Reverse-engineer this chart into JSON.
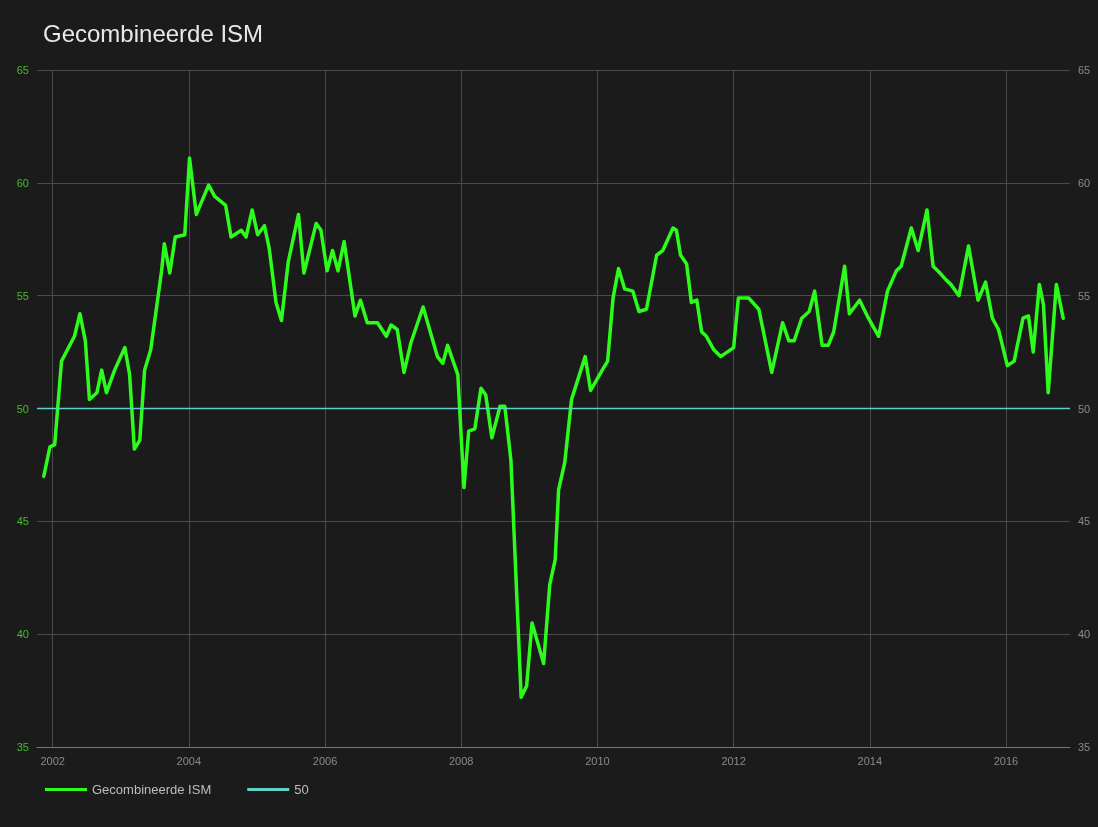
{
  "chart_data": {
    "type": "line",
    "title": "Gecombineerde ISM",
    "x": [
      2001.87,
      2001.96,
      2002.03,
      2002.13,
      2002.32,
      2002.4,
      2002.48,
      2002.54,
      2002.65,
      2002.72,
      2002.79,
      2002.91,
      2003.06,
      2003.13,
      2003.2,
      2003.28,
      2003.35,
      2003.44,
      2003.6,
      2003.64,
      2003.72,
      2003.8,
      2003.94,
      2004.01,
      2004.11,
      2004.29,
      2004.38,
      2004.54,
      2004.62,
      2004.77,
      2004.84,
      2004.93,
      2005.01,
      2005.11,
      2005.18,
      2005.28,
      2005.36,
      2005.46,
      2005.61,
      2005.69,
      2005.87,
      2005.94,
      2006.03,
      2006.11,
      2006.19,
      2006.28,
      2006.44,
      2006.52,
      2006.62,
      2006.77,
      2006.9,
      2006.97,
      2007.06,
      2007.16,
      2007.26,
      2007.44,
      2007.65,
      2007.73,
      2007.8,
      2007.95,
      2008.04,
      2008.11,
      2008.2,
      2008.29,
      2008.36,
      2008.45,
      2008.57,
      2008.64,
      2008.73,
      2008.88,
      2008.96,
      2009.04,
      2009.21,
      2009.3,
      2009.38,
      2009.43,
      2009.52,
      2009.62,
      2009.82,
      2009.9,
      2010.09,
      2010.15,
      2010.23,
      2010.31,
      2010.4,
      2010.52,
      2010.61,
      2010.72,
      2010.87,
      2010.96,
      2011.11,
      2011.16,
      2011.22,
      2011.31,
      2011.38,
      2011.46,
      2011.53,
      2011.6,
      2011.71,
      2011.81,
      2012.0,
      2012.07,
      2012.22,
      2012.37,
      2012.56,
      2012.72,
      2012.81,
      2012.89,
      2013.0,
      2013.11,
      2013.19,
      2013.3,
      2013.39,
      2013.47,
      2013.63,
      2013.7,
      2013.85,
      2013.98,
      2014.13,
      2014.26,
      2014.39,
      2014.46,
      2014.61,
      2014.71,
      2014.84,
      2014.93,
      2015.03,
      2015.12,
      2015.19,
      2015.31,
      2015.45,
      2015.59,
      2015.7,
      2015.8,
      2015.89,
      2016.02,
      2016.12,
      2016.25,
      2016.33,
      2016.4,
      2016.49,
      2016.55,
      2016.62,
      2016.74,
      2016.84
    ],
    "series": [
      {
        "name": "Gecombineerde ISM",
        "color": "#2dfb1c",
        "values": [
          47.0,
          48.3,
          48.4,
          52.1,
          53.2,
          54.2,
          53.0,
          50.4,
          50.7,
          51.7,
          50.7,
          51.7,
          52.7,
          51.5,
          48.2,
          48.6,
          51.7,
          52.6,
          56.1,
          57.3,
          56.0,
          57.6,
          57.7,
          61.1,
          58.6,
          59.9,
          59.4,
          59.0,
          57.6,
          57.9,
          57.6,
          58.8,
          57.7,
          58.1,
          57.1,
          54.7,
          53.9,
          56.5,
          58.6,
          56.0,
          58.2,
          57.9,
          56.1,
          57.0,
          56.1,
          57.4,
          54.1,
          54.8,
          53.8,
          53.8,
          53.2,
          53.7,
          53.5,
          51.6,
          52.9,
          54.5,
          52.3,
          52.0,
          52.8,
          51.5,
          46.5,
          49.0,
          49.1,
          50.9,
          50.6,
          48.7,
          50.1,
          50.1,
          47.7,
          37.2,
          37.7,
          40.5,
          38.7,
          42.2,
          43.3,
          46.4,
          47.6,
          50.4,
          52.3,
          50.8,
          51.8,
          52.1,
          54.9,
          56.2,
          55.3,
          55.2,
          54.3,
          54.4,
          56.8,
          57.0,
          58.0,
          57.9,
          56.8,
          56.4,
          54.7,
          54.8,
          53.4,
          53.2,
          52.6,
          52.3,
          52.7,
          54.9,
          54.9,
          54.4,
          51.6,
          53.8,
          53.0,
          53.0,
          54.0,
          54.3,
          55.2,
          52.8,
          52.8,
          53.4,
          56.3,
          54.2,
          54.8,
          54.0,
          53.2,
          55.2,
          56.1,
          56.3,
          58.0,
          57.0,
          58.8,
          56.3,
          56.0,
          55.7,
          55.5,
          55.0,
          57.2,
          54.8,
          55.6,
          54.0,
          53.5,
          51.9,
          52.1,
          54.0,
          54.1,
          52.5,
          55.5,
          54.6,
          50.7,
          55.5,
          54.0
        ]
      }
    ],
    "ref_lines": [
      {
        "axis": "y",
        "value": 50,
        "label": "50",
        "color": "#5fd0c4"
      }
    ],
    "xlim": [
      2001.77,
      2016.94
    ],
    "xticks": [
      2002,
      2004,
      2006,
      2008,
      2010,
      2012,
      2014,
      2016
    ],
    "ylim": [
      35,
      65
    ],
    "yticks": [
      35,
      40,
      45,
      50,
      55,
      60,
      65
    ],
    "y2lim": [
      35,
      65
    ],
    "y2ticks": [
      35,
      40,
      45,
      50,
      55,
      60,
      65
    ],
    "grid": true,
    "legend": "bottom left",
    "marker": "none",
    "line_style": "solid"
  }
}
